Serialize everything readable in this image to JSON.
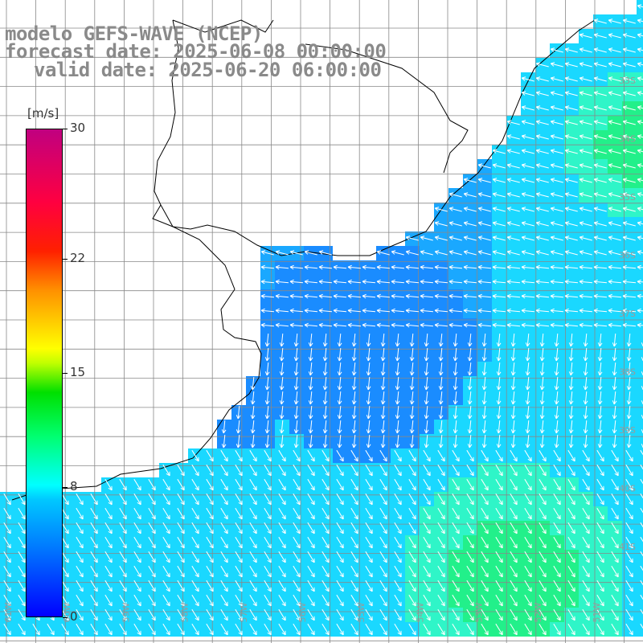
{
  "title": {
    "line1": "modelo GEFS-WAVE (NCEP)",
    "line2": "forecast date: 2025-06-08 00:00:00",
    "line3": "valid date: 2025-06-20 06:00:00"
  },
  "colorbar": {
    "unit": "[m/s]",
    "min": 0,
    "max": 30,
    "ticks": [
      "30",
      "22",
      "15",
      "8",
      "0"
    ],
    "tick_values": [
      30,
      22,
      15,
      8,
      0
    ]
  },
  "axes": {
    "lat_labels": [
      "33S",
      "34S",
      "35S",
      "36S",
      "37S",
      "38S",
      "39S",
      "40S",
      "41S"
    ],
    "lon_labels": [
      "61W",
      "60W",
      "59W",
      "58W",
      "57W",
      "56W",
      "55W",
      "54W",
      "53W",
      "52W",
      "51W"
    ]
  },
  "colors": {
    "land": "#ffffff",
    "grid": "#888888",
    "coast": "#000000",
    "label": "#9a9a9a",
    "arrow": "#ffffff"
  }
}
